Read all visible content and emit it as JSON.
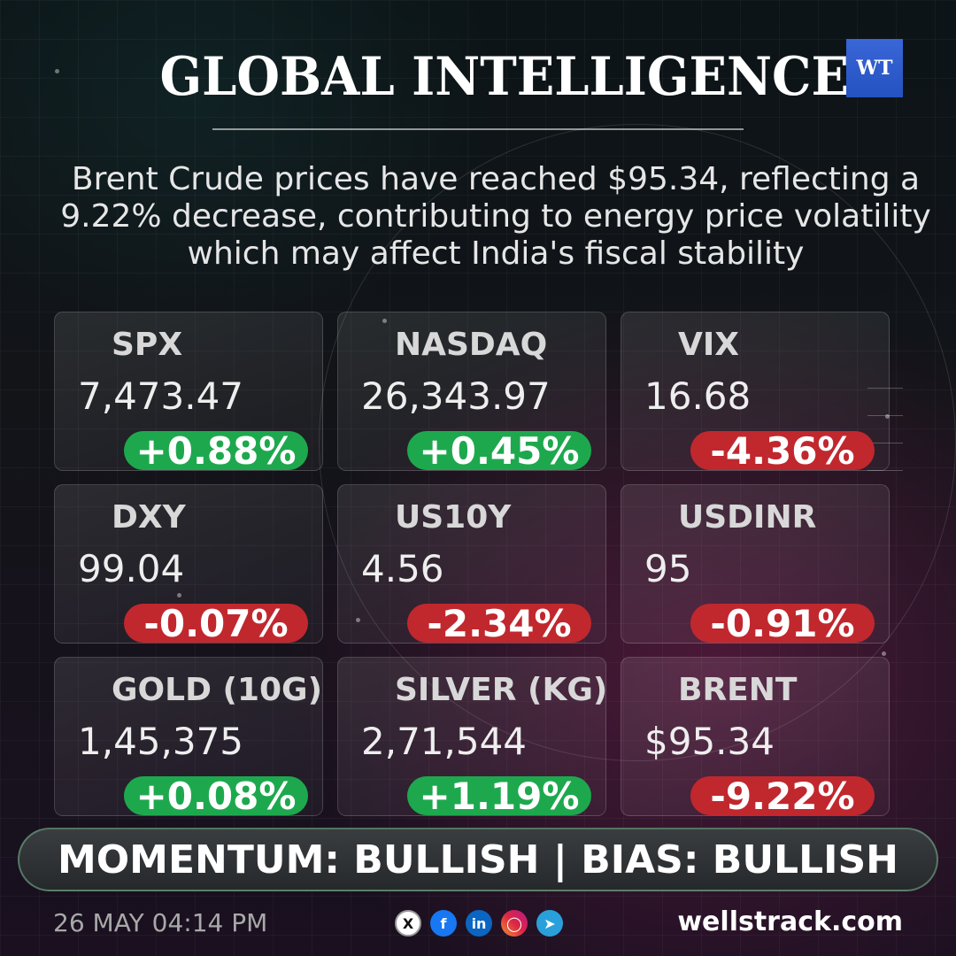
{
  "header": {
    "title": "GLOBAL INTELLIGENCE",
    "logo_text": "WT"
  },
  "headline": "Brent Crude prices have reached $95.34, reflecting a 9.22% decrease, contributing to energy price volatility which may affect India's fiscal stability",
  "colors": {
    "positive": "#1ea84e",
    "negative": "#c0282e",
    "logo": "#2452c0"
  },
  "cards": [
    {
      "label": "SPX",
      "value": "7,473.47",
      "change": "+0.88%",
      "direction": "up"
    },
    {
      "label": "NASDAQ",
      "value": "26,343.97",
      "change": "+0.45%",
      "direction": "up"
    },
    {
      "label": "VIX",
      "value": "16.68",
      "change": "-4.36%",
      "direction": "down"
    },
    {
      "label": "DXY",
      "value": "99.04",
      "change": "-0.07%",
      "direction": "down"
    },
    {
      "label": "US10Y",
      "value": "4.56",
      "change": "-2.34%",
      "direction": "down"
    },
    {
      "label": "USDINR",
      "value": "95",
      "change": "-0.91%",
      "direction": "down"
    },
    {
      "label": "GOLD (10G)",
      "value": "1,45,375",
      "change": "+0.08%",
      "direction": "up"
    },
    {
      "label": "SILVER (KG)",
      "value": "2,71,544",
      "change": "+1.19%",
      "direction": "up"
    },
    {
      "label": "BRENT",
      "value": "$95.34",
      "change": "-9.22%",
      "direction": "down"
    }
  ],
  "momentum_bar": "MOMENTUM: BULLISH | BIAS: BULLISH",
  "footer": {
    "timestamp": "26 MAY 04:14 PM",
    "social_icons": [
      "x-icon",
      "facebook-icon",
      "linkedin-icon",
      "instagram-icon",
      "telegram-icon"
    ],
    "website": "wellstrack.com"
  }
}
